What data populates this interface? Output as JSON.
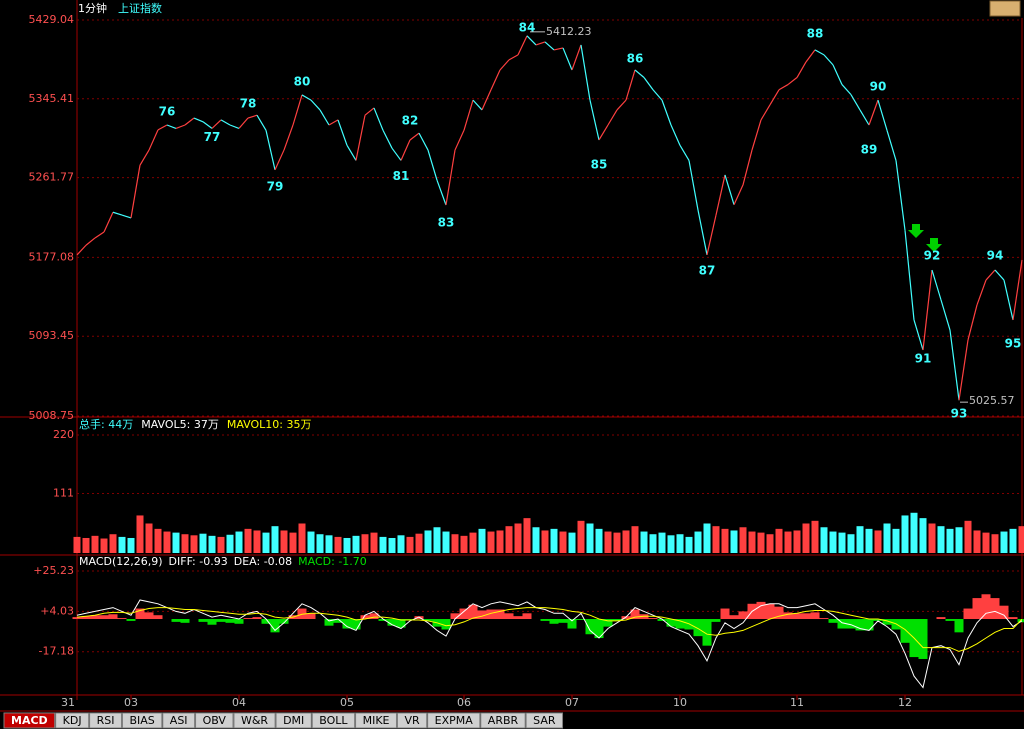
{
  "top_bar": {
    "period": "1分钟",
    "symbol": "上证指数"
  },
  "chart_data": [
    {
      "type": "price-line",
      "name": "price",
      "xlim": [
        0,
        105
      ],
      "xticks": [
        {
          "value": 0,
          "label": "31"
        },
        {
          "value": 6,
          "label": "03"
        },
        {
          "value": 18,
          "label": "04"
        },
        {
          "value": 30,
          "label": "05"
        },
        {
          "value": 43,
          "label": "06"
        },
        {
          "value": 55,
          "label": "07"
        },
        {
          "value": 67,
          "label": "10"
        },
        {
          "value": 80,
          "label": "11"
        },
        {
          "value": 92,
          "label": "12"
        }
      ],
      "ylim": [
        5008.75,
        5429.04
      ],
      "yticks": [
        5008.75,
        5093.45,
        5177.08,
        5261.77,
        5345.41,
        5429.04
      ],
      "up_color": "#ff4040",
      "down_color": "#40ffff",
      "values": [
        5179.7,
        5190,
        5197.7,
        5204,
        5225,
        5222,
        5219,
        5275,
        5291,
        5312.4,
        5317.6,
        5314,
        5317.6,
        5325,
        5321,
        5314,
        5323,
        5317.6,
        5314,
        5325,
        5328,
        5312,
        5270,
        5291,
        5317.6,
        5349.5,
        5344,
        5333.6,
        5317.6,
        5323,
        5296,
        5280,
        5328,
        5335.7,
        5312,
        5293,
        5280,
        5301.7,
        5309,
        5291,
        5259,
        5232.7,
        5291,
        5312,
        5344,
        5333.6,
        5355,
        5376,
        5386.7,
        5392,
        5412.23,
        5402.6,
        5405.8,
        5397.3,
        5399.4,
        5376,
        5402.6,
        5344,
        5301.7,
        5317.6,
        5333.6,
        5344,
        5376,
        5368,
        5355,
        5344,
        5317.6,
        5296,
        5280,
        5227.4,
        5179.7,
        5222,
        5264.6,
        5233,
        5254,
        5291,
        5323,
        5339,
        5355,
        5360.5,
        5368,
        5384.5,
        5397.3,
        5392,
        5381.4,
        5360.5,
        5349.8,
        5333.6,
        5317.6,
        5344,
        5312,
        5280,
        5206,
        5110.7,
        5078.8,
        5163.7,
        5132,
        5100,
        5025.57,
        5089.5,
        5126.6,
        5153,
        5163.7,
        5153,
        5110.7,
        5174.4
      ],
      "annotations": [
        "76",
        "77",
        "78",
        "79",
        "80",
        "81",
        "82",
        "83",
        "84",
        "85",
        "86",
        "87",
        "88",
        "89",
        "90",
        "91",
        "92",
        "93",
        "94",
        "95"
      ],
      "max_label": 5412.23,
      "min_label": 5025.57
    },
    {
      "type": "volume-bar",
      "name": "volume",
      "header": [
        "总手: 44万",
        "MAVOL5: 37万",
        "MAVOL10: 35万"
      ],
      "ylim": [
        0,
        220
      ],
      "yticks": [
        111,
        220
      ],
      "values": [
        30,
        28,
        32,
        27,
        35,
        30,
        28,
        70,
        55,
        45,
        40,
        38,
        35,
        33,
        36,
        32,
        30,
        34,
        40,
        45,
        42,
        38,
        50,
        42,
        38,
        55,
        40,
        35,
        33,
        30,
        28,
        32,
        35,
        38,
        30,
        28,
        33,
        30,
        36,
        42,
        48,
        40,
        35,
        32,
        38,
        45,
        40,
        42,
        50,
        55,
        65,
        48,
        42,
        45,
        40,
        38,
        60,
        55,
        45,
        40,
        38,
        42,
        50,
        40,
        35,
        38,
        33,
        35,
        30,
        40,
        55,
        50,
        45,
        42,
        48,
        40,
        38,
        35,
        45,
        40,
        42,
        55,
        60,
        48,
        40,
        38,
        35,
        50,
        45,
        42,
        55,
        45,
        70,
        75,
        65,
        55,
        50,
        45,
        48,
        60,
        42,
        38,
        35,
        40,
        45,
        50
      ]
    },
    {
      "type": "macd",
      "name": "macd",
      "header": [
        "MACD(12,26,9)",
        "DIFF: -0.93",
        "DEA: -0.08",
        "MACD: -1.70"
      ],
      "ylim": [
        -39.4,
        25.23
      ],
      "yticks": [
        {
          "value": -17.18,
          "label": "-17.18"
        },
        {
          "value": 4.03,
          "label": "+4.03"
        },
        {
          "value": 25.23,
          "label": "+25.23"
        }
      ],
      "series": [
        {
          "name": "DIFF",
          "color": "#ffffff",
          "values": [
            2,
            3,
            4,
            5,
            6,
            4,
            2,
            10,
            9,
            8,
            6,
            4,
            3,
            5,
            3,
            1,
            2,
            1,
            0,
            3,
            4,
            0,
            -6,
            -2,
            3,
            8,
            6,
            3,
            -1,
            0,
            -4,
            -6,
            2,
            4,
            0,
            -3,
            -5,
            -1,
            1,
            -2,
            -6,
            -9,
            0,
            4,
            8,
            6,
            8,
            9,
            8,
            7,
            9,
            6,
            5,
            3,
            3,
            -1,
            3,
            -6,
            -10,
            -5,
            -2,
            1,
            6,
            4,
            2,
            0,
            -4,
            -6,
            -8,
            -14,
            -22,
            -10,
            -2,
            -5,
            -2,
            4,
            7,
            8,
            8,
            6,
            6,
            7,
            8,
            5,
            2,
            -2,
            -3,
            -5,
            -6,
            -1,
            -4,
            -8,
            -18,
            -30,
            -36,
            -15,
            -14,
            -16,
            -24,
            -10,
            -2,
            3,
            4,
            2,
            -4,
            -0.93
          ]
        },
        {
          "name": "DEA",
          "color": "#ffff00",
          "values": [
            1,
            1.5,
            2,
            3,
            3.5,
            3.5,
            3,
            4.5,
            5.5,
            6,
            6,
            5.5,
            5,
            5,
            4.5,
            4,
            3.5,
            3,
            2.5,
            2.5,
            3,
            2.5,
            1,
            0.5,
            1,
            2.5,
            3,
            3,
            2.5,
            2,
            1,
            -0.5,
            0,
            1,
            1,
            0.5,
            -0.5,
            -0.5,
            -0.5,
            -1,
            -2,
            -3.5,
            -3,
            -1.5,
            0.5,
            1.5,
            3,
            4,
            5,
            5.5,
            6,
            6,
            6,
            5.5,
            5,
            4,
            3.5,
            2,
            0,
            -1,
            -1,
            -0.5,
            1,
            1.5,
            1.5,
            1,
            0,
            -1,
            -2.5,
            -5,
            -8,
            -8.5,
            -7.5,
            -7,
            -6,
            -4,
            -2,
            0,
            1.5,
            2.5,
            3,
            4,
            4.5,
            4.5,
            4,
            3,
            2,
            1,
            0,
            0,
            -1,
            -2.5,
            -5.5,
            -10,
            -15,
            -15,
            -15,
            -15,
            -17,
            -15.5,
            -13,
            -10,
            -7,
            -5,
            -5,
            -0.08
          ]
        }
      ],
      "histogram": {
        "up_color": "#ff4040",
        "down_color": "#00e000",
        "values": [
          1,
          1.5,
          2,
          2,
          2.5,
          0.5,
          -1,
          5.5,
          3.5,
          2,
          0,
          -1.5,
          -2,
          0,
          -1.5,
          -3,
          -1.5,
          -2,
          -2.5,
          0.5,
          1,
          -2.5,
          -7,
          -2.5,
          2,
          5.5,
          3,
          0,
          -3.5,
          -2,
          -5,
          -5.5,
          2,
          3,
          -1,
          -3.5,
          -4.5,
          -0.5,
          1.5,
          -1,
          -4,
          -5.5,
          3,
          5.5,
          7.5,
          4.5,
          5,
          5,
          3,
          1.5,
          3,
          0,
          -1,
          -2.5,
          -2,
          -5,
          -0.5,
          -8,
          -10,
          -4,
          -1,
          1.5,
          5,
          2.5,
          0.5,
          -1,
          -4,
          -5,
          -5.5,
          -9,
          -14,
          -1.5,
          5.5,
          2,
          4,
          8,
          9,
          8,
          6.5,
          3.5,
          3,
          3,
          3.5,
          0.5,
          -2,
          -5,
          -5,
          -6,
          -6,
          -1,
          -3,
          -5.5,
          -12.5,
          -20,
          -21,
          0,
          1,
          -1,
          -7,
          5.5,
          11,
          13,
          11,
          7,
          1,
          -1.7
        ]
      }
    }
  ],
  "tabs": [
    "MACD",
    "KDJ",
    "RSI",
    "BIAS",
    "ASI",
    "OBV",
    "W&R",
    "DMI",
    "BOLL",
    "MIKE",
    "VR",
    "EXPMA",
    "ARBR",
    "SAR"
  ]
}
